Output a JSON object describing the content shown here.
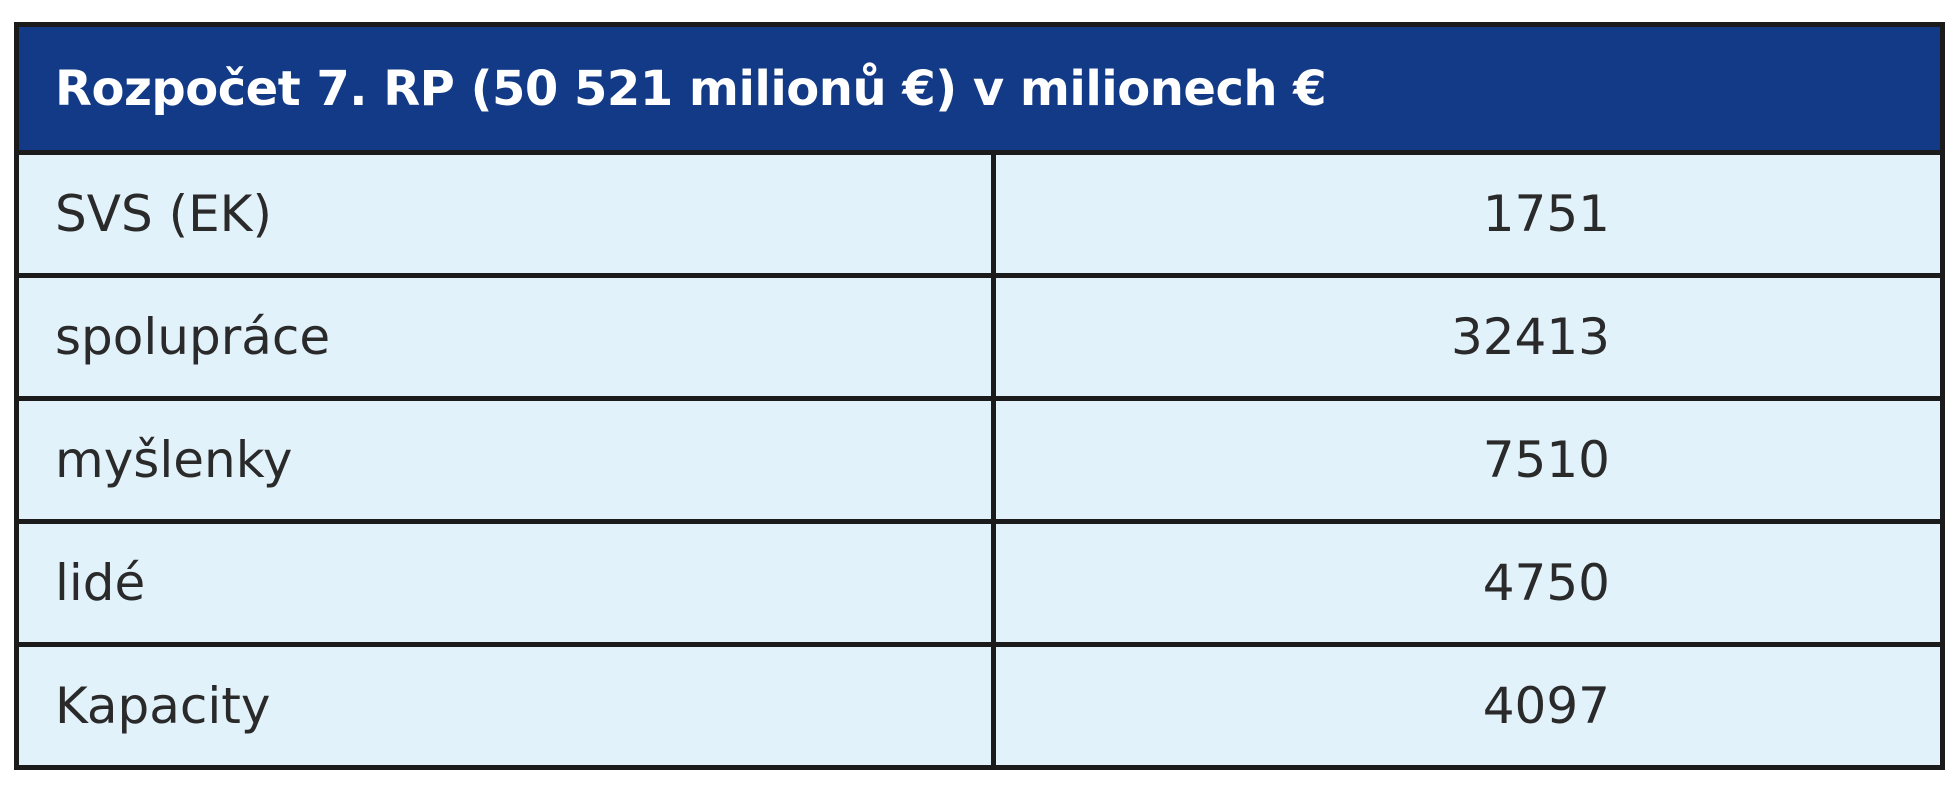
{
  "table": {
    "header": "Rozpočet 7. RP (50 521 milionů €) v milionech €",
    "rows": [
      {
        "label": "SVS (EK)",
        "value": "1751"
      },
      {
        "label": "spolupráce",
        "value": "32413"
      },
      {
        "label": "myšlenky",
        "value": "7510"
      },
      {
        "label": "lidé",
        "value": "4750"
      },
      {
        "label": "Kapacity",
        "value": "4097"
      }
    ]
  },
  "colors": {
    "header_background": "#123a86",
    "header_text": "#ffffff",
    "row_background": "#e2f2fb",
    "border": "#1b1b1b"
  }
}
